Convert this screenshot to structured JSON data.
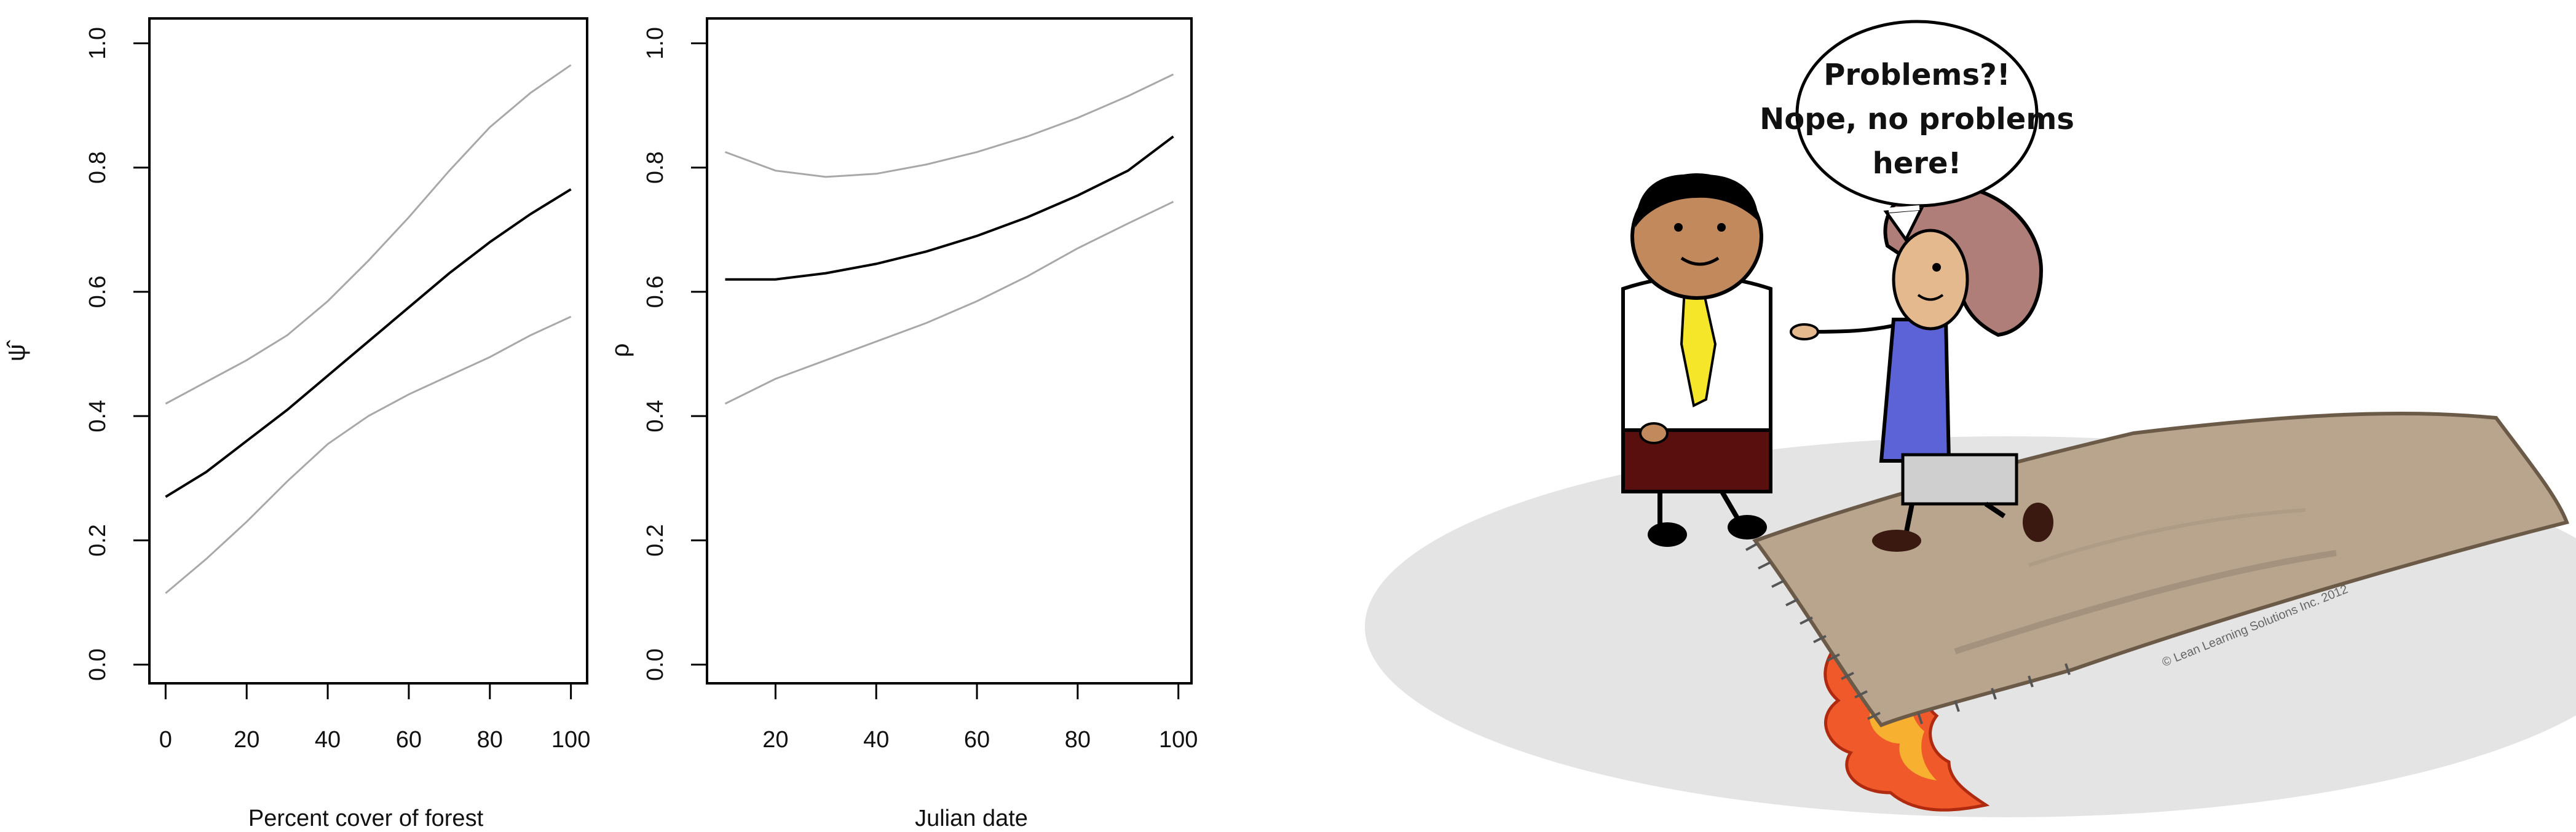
{
  "chart_data": [
    {
      "type": "line",
      "title": "",
      "xlabel": "Percent cover of forest",
      "ylabel": "ψ̂",
      "xlim": [
        -4,
        104
      ],
      "ylim": [
        -0.03,
        1.04
      ],
      "xticks": [
        0,
        20,
        40,
        60,
        80,
        100
      ],
      "yticks": [
        0.0,
        0.2,
        0.4,
        0.6,
        0.8,
        1.0
      ],
      "xtick_labels": [
        "0",
        "20",
        "40",
        "60",
        "80",
        "100"
      ],
      "ytick_labels": [
        "0.0",
        "0.2",
        "0.4",
        "0.6",
        "0.8",
        "1.0"
      ],
      "grid": false,
      "series": [
        {
          "role": "estimate",
          "color": "#000000",
          "x": [
            0,
            10,
            20,
            30,
            40,
            50,
            60,
            70,
            80,
            90,
            100
          ],
          "y": [
            0.27,
            0.31,
            0.36,
            0.41,
            0.465,
            0.52,
            0.575,
            0.63,
            0.68,
            0.725,
            0.765
          ]
        },
        {
          "role": "upper",
          "color": "#a8a8a8",
          "x": [
            0,
            10,
            20,
            30,
            40,
            50,
            60,
            70,
            80,
            90,
            100
          ],
          "y": [
            0.42,
            0.455,
            0.49,
            0.53,
            0.585,
            0.65,
            0.72,
            0.795,
            0.865,
            0.92,
            0.965
          ]
        },
        {
          "role": "lower",
          "color": "#a8a8a8",
          "x": [
            0,
            10,
            20,
            30,
            40,
            50,
            60,
            70,
            80,
            90,
            100
          ],
          "y": [
            0.115,
            0.17,
            0.23,
            0.295,
            0.355,
            0.4,
            0.435,
            0.465,
            0.495,
            0.53,
            0.56
          ]
        }
      ]
    },
    {
      "type": "line",
      "title": "",
      "xlabel": "Julian date",
      "ylabel": "ρ",
      "xlim": [
        6.4,
        102.6
      ],
      "ylim": [
        -0.03,
        1.04
      ],
      "xticks": [
        20,
        40,
        60,
        80,
        100
      ],
      "yticks": [
        0.0,
        0.2,
        0.4,
        0.6,
        0.8,
        1.0
      ],
      "xtick_labels": [
        "20",
        "40",
        "60",
        "80",
        "100"
      ],
      "ytick_labels": [
        "0.0",
        "0.2",
        "0.4",
        "0.6",
        "0.8",
        "1.0"
      ],
      "grid": false,
      "series": [
        {
          "role": "estimate",
          "color": "#000000",
          "x": [
            10,
            20,
            30,
            40,
            50,
            60,
            70,
            80,
            90,
            99
          ],
          "y": [
            0.62,
            0.62,
            0.63,
            0.645,
            0.665,
            0.69,
            0.72,
            0.755,
            0.795,
            0.85
          ]
        },
        {
          "role": "upper",
          "color": "#a8a8a8",
          "x": [
            10,
            20,
            30,
            40,
            50,
            60,
            70,
            80,
            90,
            99
          ],
          "y": [
            0.825,
            0.795,
            0.785,
            0.79,
            0.805,
            0.825,
            0.85,
            0.88,
            0.915,
            0.95
          ]
        },
        {
          "role": "lower",
          "color": "#a8a8a8",
          "x": [
            10,
            20,
            30,
            40,
            50,
            60,
            70,
            80,
            90,
            99
          ],
          "y": [
            0.42,
            0.46,
            0.49,
            0.52,
            0.55,
            0.585,
            0.625,
            0.67,
            0.71,
            0.745
          ]
        }
      ]
    }
  ],
  "cartoon": {
    "speech_bubble": [
      "Problems?!",
      "Nope, no problems",
      "here!"
    ],
    "copyright": "© Lean Learning Solutions Inc. 2012"
  }
}
